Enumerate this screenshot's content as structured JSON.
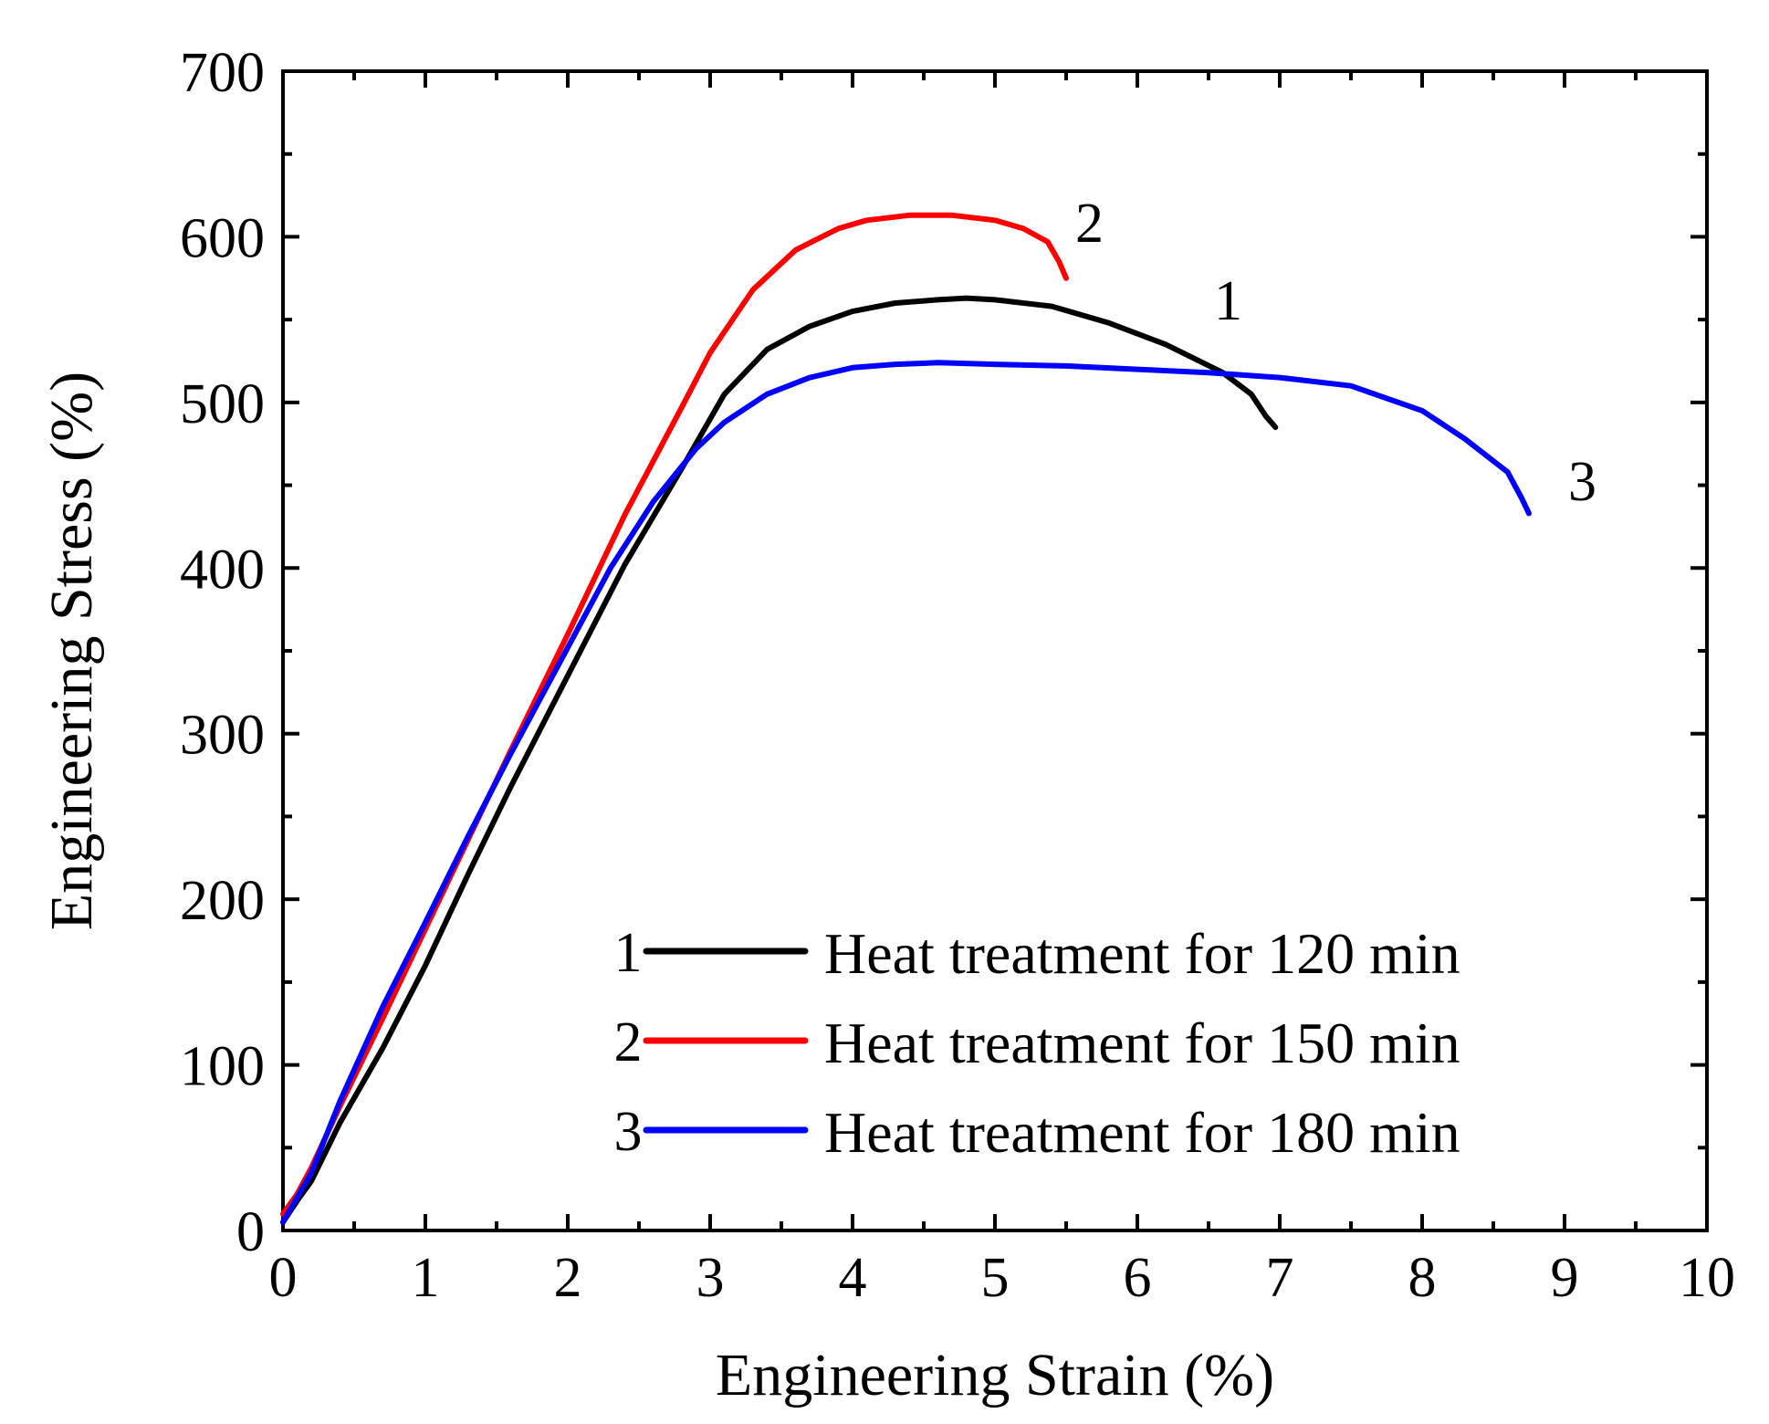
{
  "chart_data": {
    "type": "line",
    "title": "",
    "xlabel": "Engineering Strain (%)",
    "ylabel": "Engineering Stress (%)",
    "xlim": [
      0,
      10
    ],
    "ylim": [
      0,
      700
    ],
    "xticks": [
      0,
      1,
      2,
      3,
      4,
      5,
      6,
      7,
      8,
      9,
      10
    ],
    "yticks": [
      0,
      100,
      200,
      300,
      400,
      500,
      600,
      700
    ],
    "xtick_labels": [
      "0",
      "1",
      "2",
      "3",
      "4",
      "5",
      "6",
      "7",
      "8",
      "9",
      "10"
    ],
    "ytick_labels": [
      "0",
      "100",
      "200",
      "300",
      "400",
      "500",
      "600",
      "700"
    ],
    "grid": false,
    "legend_position": "bottom-right",
    "series": [
      {
        "id": "1",
        "name": "Heat treatment for 120 min",
        "color": "#000000",
        "end_label": "1",
        "x": [
          0,
          0.1,
          0.2,
          0.4,
          0.7,
          1.0,
          1.3,
          1.6,
          2.0,
          2.4,
          2.8,
          3.1,
          3.4,
          3.7,
          4.0,
          4.3,
          4.6,
          4.8,
          5.0,
          5.4,
          5.8,
          6.2,
          6.6,
          6.8,
          6.9,
          6.97
        ],
        "y": [
          5,
          18,
          30,
          65,
          110,
          160,
          215,
          268,
          335,
          402,
          460,
          505,
          532,
          546,
          555,
          560,
          562,
          563,
          562,
          558,
          548,
          535,
          518,
          505,
          492,
          485
        ]
      },
      {
        "id": "2",
        "name": "Heat treatment for 150 min",
        "color": "#ff0000",
        "end_label": "2",
        "x": [
          0,
          0.1,
          0.2,
          0.4,
          0.7,
          1.0,
          1.3,
          1.6,
          2.0,
          2.4,
          2.8,
          3.0,
          3.3,
          3.6,
          3.9,
          4.1,
          4.4,
          4.7,
          5.0,
          5.2,
          5.37,
          5.45,
          5.5
        ],
        "y": [
          10,
          22,
          38,
          75,
          128,
          182,
          236,
          290,
          360,
          432,
          497,
          530,
          568,
          592,
          605,
          610,
          613,
          613,
          610,
          605,
          597,
          585,
          575
        ]
      },
      {
        "id": "3",
        "name": "Heat treatment for 180 min",
        "color": "#0000ff",
        "end_label": "3",
        "x": [
          0,
          0.1,
          0.2,
          0.4,
          0.7,
          1.0,
          1.3,
          1.6,
          2.0,
          2.3,
          2.6,
          2.9,
          3.1,
          3.4,
          3.7,
          4.0,
          4.3,
          4.6,
          5.0,
          5.5,
          6.0,
          6.5,
          7.0,
          7.5,
          8.0,
          8.3,
          8.6,
          8.7,
          8.75
        ],
        "y": [
          5,
          20,
          35,
          78,
          135,
          186,
          238,
          288,
          352,
          400,
          440,
          472,
          488,
          505,
          515,
          521,
          523,
          524,
          523,
          522,
          520,
          518,
          515,
          510,
          495,
          478,
          458,
          442,
          433
        ]
      }
    ]
  }
}
